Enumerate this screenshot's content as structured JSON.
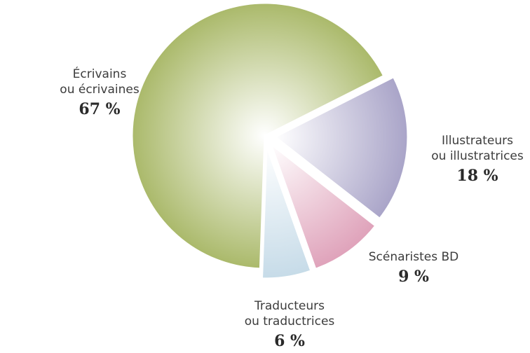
{
  "chart_data": {
    "type": "pie",
    "slices": [
      {
        "label_line1": "Écrivains",
        "label_line2": "ou écrivaines",
        "value": 67,
        "value_label": "67 %",
        "color": "#aab96a"
      },
      {
        "label_line1": "Illustrateurs",
        "label_line2": "ou illustratrices",
        "value": 18,
        "value_label": "18 %",
        "color": "#a9a4c8"
      },
      {
        "label_line1": "Scénaristes BD",
        "label_line2": "",
        "value": 9,
        "value_label": "9 %",
        "color": "#dfa2ba"
      },
      {
        "label_line1": "Traducteurs",
        "label_line2": "ou traductrices",
        "value": 6,
        "value_label": "6 %",
        "color": "#c6dbe8"
      }
    ],
    "exploded": true,
    "legend": "none"
  }
}
